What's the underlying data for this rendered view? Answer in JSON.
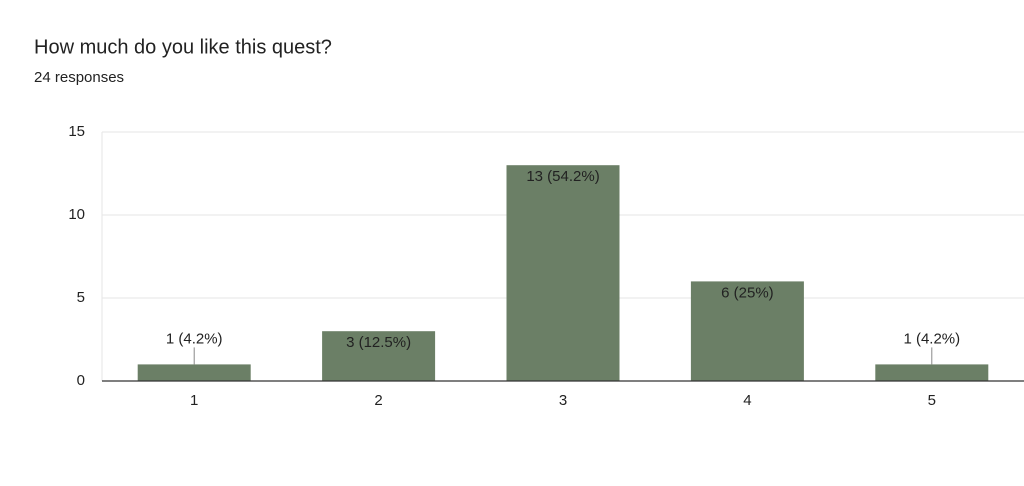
{
  "chart_data": {
    "type": "bar",
    "title": "How much do you like this quest?",
    "subtitle": "24 responses",
    "categories": [
      "1",
      "2",
      "3",
      "4",
      "5"
    ],
    "values": [
      1,
      3,
      13,
      6,
      1
    ],
    "value_labels": [
      "1 (4.2%)",
      "3 (12.5%)",
      "13 (54.2%)",
      "6 (25%)",
      "1 (4.2%)"
    ],
    "color": "#6b7f66",
    "ylim": [
      0,
      15
    ],
    "yticks": [
      0,
      5,
      10,
      15
    ],
    "grid": true
  }
}
